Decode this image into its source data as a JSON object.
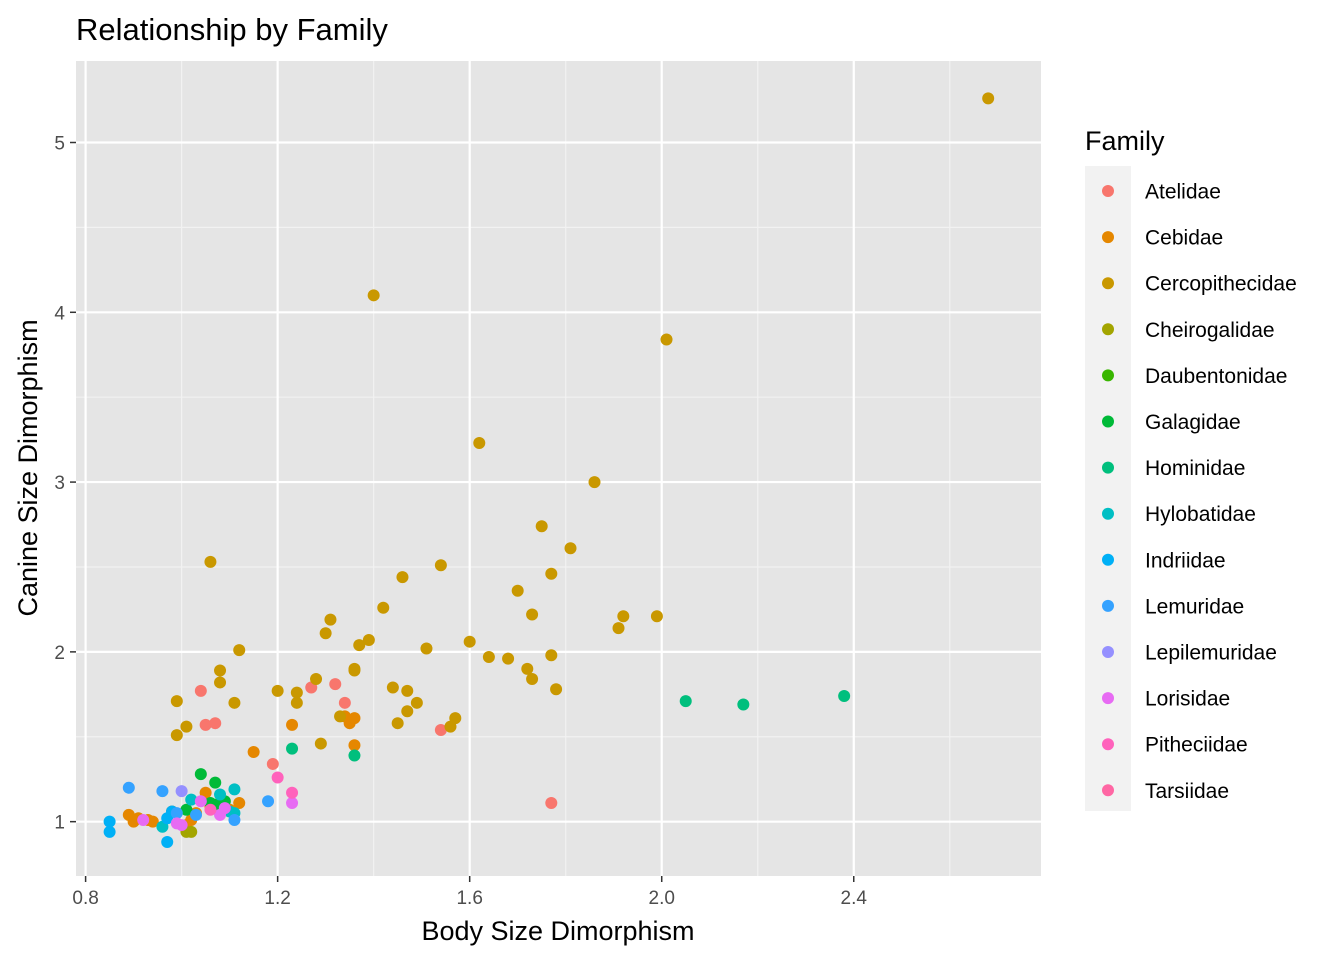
{
  "chart_data": {
    "type": "scatter",
    "title": "Relationship by Family",
    "xlabel": "Body Size Dimorphism",
    "ylabel": "Canine Size Dimorphism",
    "xlim": [
      0.78,
      2.79
    ],
    "ylim": [
      0.68,
      5.48
    ],
    "xticks": [
      0.8,
      1.2,
      1.6,
      2.0,
      2.4
    ],
    "xtick_labels": [
      "0.8",
      "1.2",
      "1.6",
      "2.0",
      "2.4"
    ],
    "yticks": [
      1,
      2,
      3,
      4,
      5
    ],
    "ytick_labels": [
      "1",
      "2",
      "3",
      "4",
      "5"
    ],
    "grid": true,
    "background": "#e5e5e5",
    "legend": {
      "title": "Family",
      "placement": "right"
    },
    "series": [
      {
        "name": "Atelidae",
        "color": "#F8766D",
        "x": [
          1.04,
          1.05,
          1.07,
          1.19,
          1.27,
          1.32,
          1.34,
          1.54,
          1.77
        ],
        "y": [
          1.77,
          1.57,
          1.58,
          1.34,
          1.79,
          1.81,
          1.7,
          1.54,
          1.11
        ]
      },
      {
        "name": "Cebidae",
        "color": "#E58700",
        "x": [
          0.89,
          0.9,
          0.91,
          0.93,
          0.94,
          0.98,
          1.01,
          1.02,
          1.03,
          1.05,
          1.06,
          1.1,
          1.12,
          1.15,
          1.23,
          1.34,
          1.35,
          1.36,
          1.36
        ],
        "y": [
          1.04,
          1.0,
          1.02,
          1.01,
          1.0,
          1.06,
          0.98,
          1.01,
          1.05,
          1.17,
          1.09,
          1.07,
          1.11,
          1.41,
          1.57,
          1.62,
          1.58,
          1.61,
          1.45
        ]
      },
      {
        "name": "Cercopithecidae",
        "color": "#C99800",
        "x": [
          0.99,
          0.99,
          1.01,
          1.06,
          1.08,
          1.08,
          1.11,
          1.12,
          1.2,
          1.24,
          1.24,
          1.28,
          1.29,
          1.3,
          1.31,
          1.33,
          1.36,
          1.36,
          1.37,
          1.39,
          1.4,
          1.42,
          1.44,
          1.45,
          1.46,
          1.47,
          1.47,
          1.49,
          1.51,
          1.54,
          1.56,
          1.57,
          1.6,
          1.62,
          1.64,
          1.68,
          1.7,
          1.72,
          1.73,
          1.73,
          1.75,
          1.77,
          1.77,
          1.78,
          1.81,
          1.86,
          1.91,
          1.92,
          1.99,
          2.01,
          2.68
        ],
        "y": [
          1.71,
          1.51,
          1.56,
          2.53,
          1.89,
          1.82,
          1.7,
          2.01,
          1.77,
          1.76,
          1.7,
          1.84,
          1.46,
          2.11,
          2.19,
          1.62,
          1.9,
          1.89,
          2.04,
          2.07,
          4.1,
          2.26,
          1.79,
          1.58,
          2.44,
          1.77,
          1.65,
          1.7,
          2.02,
          2.51,
          1.56,
          1.61,
          2.06,
          3.23,
          1.97,
          1.96,
          2.36,
          1.9,
          1.84,
          2.22,
          2.74,
          1.98,
          2.46,
          1.78,
          2.61,
          3.0,
          2.14,
          2.21,
          2.21,
          3.84,
          5.26
        ]
      },
      {
        "name": "Cheirogalidae",
        "color": "#A3A500",
        "x": [
          1.01,
          1.02
        ],
        "y": [
          0.94,
          0.94
        ]
      },
      {
        "name": "Daubentonidae",
        "color": "#39B600",
        "x": [
          1.08
        ],
        "y": [
          1.09
        ]
      },
      {
        "name": "Galagidae",
        "color": "#00BA38",
        "x": [
          1.01,
          1.04,
          1.06,
          1.07,
          1.07,
          1.08,
          1.09
        ],
        "y": [
          1.07,
          1.28,
          1.11,
          1.23,
          1.1,
          1.11,
          1.12
        ]
      },
      {
        "name": "Hominidae",
        "color": "#00BF7D",
        "x": [
          1.23,
          1.36,
          2.05,
          2.17,
          2.38
        ],
        "y": [
          1.43,
          1.39,
          1.71,
          1.69,
          1.74
        ]
      },
      {
        "name": "Hylobatidae",
        "color": "#00BFC4",
        "x": [
          0.96,
          1.02,
          1.08,
          1.1,
          1.11,
          1.11
        ],
        "y": [
          0.97,
          1.13,
          1.16,
          1.06,
          1.19,
          1.05
        ]
      },
      {
        "name": "Indriidae",
        "color": "#00B0F6",
        "x": [
          0.85,
          0.85,
          0.97,
          0.97,
          0.98
        ],
        "y": [
          0.94,
          1.0,
          1.02,
          0.88,
          1.06
        ]
      },
      {
        "name": "Lemuridae",
        "color": "#35A2FF",
        "x": [
          0.89,
          0.96,
          0.99,
          1.03,
          1.11,
          1.18
        ],
        "y": [
          1.2,
          1.18,
          1.05,
          1.04,
          1.01,
          1.12
        ]
      },
      {
        "name": "Lepilemuridae",
        "color": "#9590FF",
        "x": [
          1.0
        ],
        "y": [
          1.18
        ]
      },
      {
        "name": "Lorisidae",
        "color": "#E76BF3",
        "x": [
          0.92,
          0.99,
          1.0,
          1.04,
          1.08,
          1.09,
          1.23
        ],
        "y": [
          1.01,
          0.99,
          0.98,
          1.12,
          1.04,
          1.08,
          1.11
        ]
      },
      {
        "name": "Pitheciidae",
        "color": "#FF62BC",
        "x": [
          1.06,
          1.2,
          1.23
        ],
        "y": [
          1.07,
          1.26,
          1.17
        ]
      },
      {
        "name": "Tarsiidae",
        "color": "#FF67A4",
        "x": [],
        "y": []
      }
    ]
  }
}
